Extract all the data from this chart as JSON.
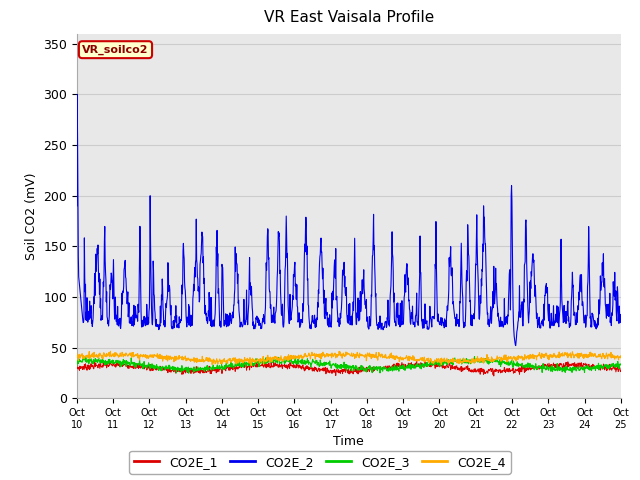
{
  "title": "VR East Vaisala Profile",
  "ylabel": "Soil CO2 (mV)",
  "xlabel": "Time",
  "ylim": [
    0,
    360
  ],
  "yticks": [
    0,
    50,
    100,
    150,
    200,
    250,
    300,
    350
  ],
  "legend_labels": [
    "CO2E_1",
    "CO2E_2",
    "CO2E_3",
    "CO2E_4"
  ],
  "legend_colors": [
    "#dd0000",
    "#0000ee",
    "#00cc00",
    "#ffaa00"
  ],
  "annotation_text": "VR_soilco2",
  "annotation_bg": "#ffffcc",
  "annotation_border": "#cc0000",
  "grid_color": "#cccccc",
  "plot_bg": "#e8e8e8",
  "x_tick_labels": [
    "Oct 10",
    "Oct 11",
    "Oct 12",
    "Oct 13",
    "Oct 14",
    "Oct 15",
    "Oct 16",
    "Oct 17",
    "Oct 18",
    "Oct 19",
    "Oct 20",
    "Oct 21",
    "Oct 22",
    "Oct 23",
    "Oct 24",
    "Oct 25"
  ],
  "n_points": 1440,
  "seed": 7
}
